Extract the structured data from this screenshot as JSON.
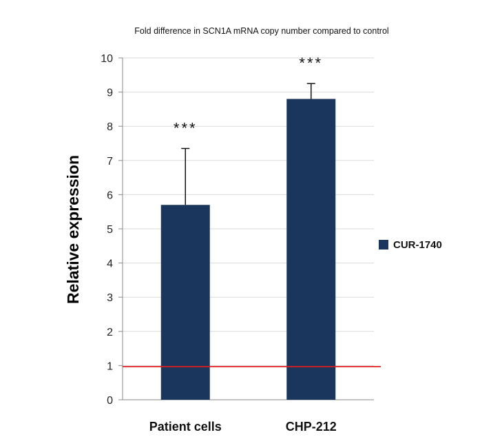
{
  "chart_data": {
    "type": "bar",
    "title": "Fold difference in SCN1A mRNA copy number compared to control",
    "xlabel": "",
    "ylabel": "Relative expression",
    "categories": [
      "Patient cells",
      "CHP-212"
    ],
    "series": [
      {
        "name": "CUR-1740",
        "values": [
          5.7,
          8.8
        ],
        "error_upper": [
          1.65,
          0.45
        ],
        "significance": [
          "***",
          "***"
        ]
      }
    ],
    "ylim": [
      0,
      10
    ],
    "yticks": [
      "0",
      "1",
      "2",
      "3",
      "4",
      "5",
      "6",
      "7",
      "8",
      "9",
      "10"
    ],
    "reference_line": {
      "value": 0.97,
      "color": "#e31b1b"
    },
    "grid": true,
    "legend_position": "right",
    "colors": {
      "bar": "#1b365d",
      "grid": "#d9d9d9",
      "axis": "#888888"
    }
  }
}
